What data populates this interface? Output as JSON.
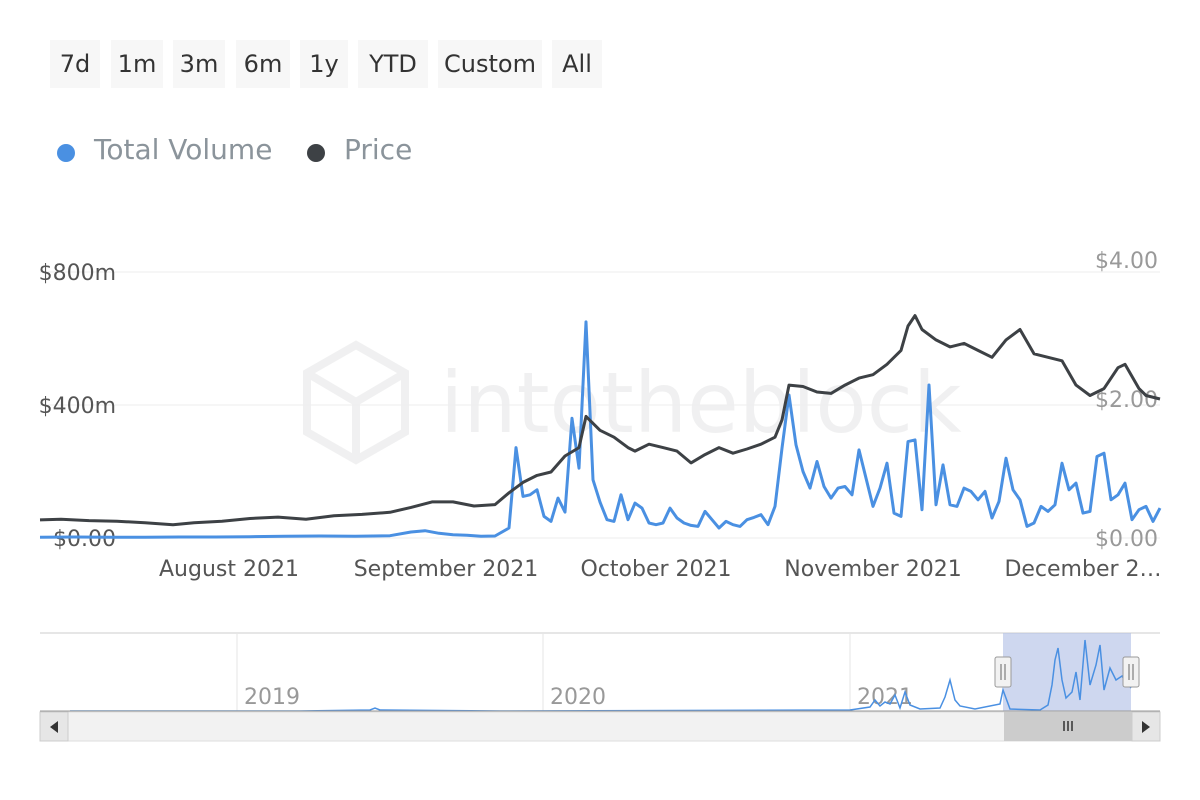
{
  "range_selector": {
    "buttons": [
      "7d",
      "1m",
      "3m",
      "6m",
      "1y",
      "YTD",
      "Custom",
      "All"
    ]
  },
  "legend": [
    {
      "label": "Total Volume",
      "color": "#4a90e2"
    },
    {
      "label": "Price",
      "color": "#3d4145"
    }
  ],
  "watermark": "intotheblock",
  "chart_data": {
    "type": "line",
    "x_ticks": [
      "August 2021",
      "September 2021",
      "October 2021",
      "November 2021",
      "December 2…"
    ],
    "y_left": {
      "ticks": [
        "$0.00",
        "$400m",
        "$800m"
      ],
      "range": [
        0,
        800
      ]
    },
    "y_right": {
      "ticks": [
        "$0.00",
        "$2.00",
        "$4.00"
      ],
      "range": [
        0,
        4
      ]
    },
    "series": [
      {
        "name": "Total Volume",
        "color": "#4a90e2",
        "axis": "left",
        "points": [
          [
            "2021-07-05",
            2
          ],
          [
            "2021-07-10",
            3
          ],
          [
            "2021-07-15",
            2
          ],
          [
            "2021-07-20",
            2
          ],
          [
            "2021-07-25",
            3
          ],
          [
            "2021-07-30",
            3
          ],
          [
            "2021-08-04",
            4
          ],
          [
            "2021-08-09",
            5
          ],
          [
            "2021-08-14",
            6
          ],
          [
            "2021-08-19",
            5
          ],
          [
            "2021-08-24",
            7
          ],
          [
            "2021-08-27",
            18
          ],
          [
            "2021-08-29",
            22
          ],
          [
            "2021-08-31",
            14
          ],
          [
            "2021-09-02",
            10
          ],
          [
            "2021-09-04",
            8
          ],
          [
            "2021-09-06",
            5
          ],
          [
            "2021-09-08",
            6
          ],
          [
            "2021-09-10",
            30
          ],
          [
            "2021-09-11",
            272
          ],
          [
            "2021-09-12",
            125
          ],
          [
            "2021-09-13",
            130
          ],
          [
            "2021-09-14",
            145
          ],
          [
            "2021-09-15",
            65
          ],
          [
            "2021-09-16",
            50
          ],
          [
            "2021-09-17",
            120
          ],
          [
            "2021-09-18",
            78
          ],
          [
            "2021-09-19",
            360
          ],
          [
            "2021-09-20",
            210
          ],
          [
            "2021-09-21",
            650
          ],
          [
            "2021-09-22",
            175
          ],
          [
            "2021-09-23",
            108
          ],
          [
            "2021-09-24",
            55
          ],
          [
            "2021-09-25",
            50
          ],
          [
            "2021-09-26",
            130
          ],
          [
            "2021-09-27",
            55
          ],
          [
            "2021-09-28",
            105
          ],
          [
            "2021-09-29",
            90
          ],
          [
            "2021-09-30",
            45
          ],
          [
            "2021-10-01",
            40
          ],
          [
            "2021-10-02",
            45
          ],
          [
            "2021-10-03",
            90
          ],
          [
            "2021-10-04",
            60
          ],
          [
            "2021-10-05",
            45
          ],
          [
            "2021-10-06",
            38
          ],
          [
            "2021-10-07",
            35
          ],
          [
            "2021-10-08",
            80
          ],
          [
            "2021-10-09",
            55
          ],
          [
            "2021-10-10",
            30
          ],
          [
            "2021-10-11",
            50
          ],
          [
            "2021-10-12",
            40
          ],
          [
            "2021-10-13",
            35
          ],
          [
            "2021-10-14",
            55
          ],
          [
            "2021-10-15",
            62
          ],
          [
            "2021-10-16",
            70
          ],
          [
            "2021-10-17",
            40
          ],
          [
            "2021-10-18",
            95
          ],
          [
            "2021-10-19",
            270
          ],
          [
            "2021-10-20",
            430
          ],
          [
            "2021-10-21",
            280
          ],
          [
            "2021-10-22",
            200
          ],
          [
            "2021-10-23",
            150
          ],
          [
            "2021-10-24",
            230
          ],
          [
            "2021-10-25",
            155
          ],
          [
            "2021-10-26",
            120
          ],
          [
            "2021-10-27",
            150
          ],
          [
            "2021-10-28",
            155
          ],
          [
            "2021-10-29",
            130
          ],
          [
            "2021-10-30",
            265
          ],
          [
            "2021-10-31",
            180
          ],
          [
            "2021-11-01",
            95
          ],
          [
            "2021-11-02",
            150
          ],
          [
            "2021-11-03",
            225
          ],
          [
            "2021-11-04",
            75
          ],
          [
            "2021-11-05",
            65
          ],
          [
            "2021-11-06",
            290
          ],
          [
            "2021-11-07",
            295
          ],
          [
            "2021-11-08",
            85
          ],
          [
            "2021-11-09",
            460
          ],
          [
            "2021-11-10",
            100
          ],
          [
            "2021-11-11",
            220
          ],
          [
            "2021-11-12",
            100
          ],
          [
            "2021-11-13",
            95
          ],
          [
            "2021-11-14",
            150
          ],
          [
            "2021-11-15",
            140
          ],
          [
            "2021-11-16",
            115
          ],
          [
            "2021-11-17",
            140
          ],
          [
            "2021-11-18",
            60
          ],
          [
            "2021-11-19",
            110
          ],
          [
            "2021-11-20",
            240
          ],
          [
            "2021-11-21",
            145
          ],
          [
            "2021-11-22",
            115
          ],
          [
            "2021-11-23",
            35
          ],
          [
            "2021-11-24",
            45
          ],
          [
            "2021-11-25",
            95
          ],
          [
            "2021-11-26",
            80
          ],
          [
            "2021-11-27",
            100
          ],
          [
            "2021-11-28",
            225
          ],
          [
            "2021-11-29",
            145
          ],
          [
            "2021-11-30",
            165
          ],
          [
            "2021-12-01",
            75
          ],
          [
            "2021-12-02",
            80
          ],
          [
            "2021-12-03",
            245
          ],
          [
            "2021-12-04",
            255
          ],
          [
            "2021-12-05",
            115
          ],
          [
            "2021-12-06",
            130
          ],
          [
            "2021-12-07",
            165
          ],
          [
            "2021-12-08",
            55
          ],
          [
            "2021-12-09",
            85
          ],
          [
            "2021-12-10",
            95
          ],
          [
            "2021-12-11",
            50
          ],
          [
            "2021-12-12",
            90
          ]
        ]
      },
      {
        "name": "Price",
        "color": "#3d4145",
        "axis": "right",
        "points": [
          [
            "2021-07-05",
            0.26
          ],
          [
            "2021-07-08",
            0.27
          ],
          [
            "2021-07-12",
            0.25
          ],
          [
            "2021-07-16",
            0.24
          ],
          [
            "2021-07-20",
            0.22
          ],
          [
            "2021-07-24",
            0.19
          ],
          [
            "2021-07-27",
            0.22
          ],
          [
            "2021-07-31",
            0.24
          ],
          [
            "2021-08-04",
            0.28
          ],
          [
            "2021-08-08",
            0.3
          ],
          [
            "2021-08-12",
            0.27
          ],
          [
            "2021-08-16",
            0.32
          ],
          [
            "2021-08-20",
            0.34
          ],
          [
            "2021-08-24",
            0.37
          ],
          [
            "2021-08-27",
            0.44
          ],
          [
            "2021-08-30",
            0.52
          ],
          [
            "2021-09-02",
            0.52
          ],
          [
            "2021-09-05",
            0.46
          ],
          [
            "2021-09-08",
            0.48
          ],
          [
            "2021-09-10",
            0.65
          ],
          [
            "2021-09-12",
            0.8
          ],
          [
            "2021-09-14",
            0.9
          ],
          [
            "2021-09-16",
            0.95
          ],
          [
            "2021-09-18",
            1.18
          ],
          [
            "2021-09-20",
            1.3
          ],
          [
            "2021-09-21",
            1.75
          ],
          [
            "2021-09-23",
            1.55
          ],
          [
            "2021-09-25",
            1.45
          ],
          [
            "2021-09-27",
            1.3
          ],
          [
            "2021-09-28",
            1.25
          ],
          [
            "2021-09-30",
            1.35
          ],
          [
            "2021-10-02",
            1.3
          ],
          [
            "2021-10-04",
            1.25
          ],
          [
            "2021-10-06",
            1.08
          ],
          [
            "2021-10-08",
            1.2
          ],
          [
            "2021-10-10",
            1.3
          ],
          [
            "2021-10-12",
            1.22
          ],
          [
            "2021-10-14",
            1.28
          ],
          [
            "2021-10-16",
            1.35
          ],
          [
            "2021-10-18",
            1.45
          ],
          [
            "2021-10-19",
            1.7
          ],
          [
            "2021-10-20",
            2.2
          ],
          [
            "2021-10-22",
            2.18
          ],
          [
            "2021-10-24",
            2.1
          ],
          [
            "2021-10-26",
            2.08
          ],
          [
            "2021-10-28",
            2.2
          ],
          [
            "2021-10-30",
            2.3
          ],
          [
            "2021-11-01",
            2.35
          ],
          [
            "2021-11-03",
            2.5
          ],
          [
            "2021-11-05",
            2.7
          ],
          [
            "2021-11-06",
            3.05
          ],
          [
            "2021-11-07",
            3.2
          ],
          [
            "2021-11-08",
            3.0
          ],
          [
            "2021-11-10",
            2.85
          ],
          [
            "2021-11-12",
            2.75
          ],
          [
            "2021-11-14",
            2.8
          ],
          [
            "2021-11-16",
            2.7
          ],
          [
            "2021-11-18",
            2.6
          ],
          [
            "2021-11-20",
            2.85
          ],
          [
            "2021-11-22",
            3.0
          ],
          [
            "2021-11-24",
            2.65
          ],
          [
            "2021-11-26",
            2.6
          ],
          [
            "2021-11-28",
            2.55
          ],
          [
            "2021-11-30",
            2.2
          ],
          [
            "2021-12-02",
            2.05
          ],
          [
            "2021-12-04",
            2.15
          ],
          [
            "2021-12-06",
            2.45
          ],
          [
            "2021-12-07",
            2.5
          ],
          [
            "2021-12-09",
            2.15
          ],
          [
            "2021-12-10",
            2.05
          ],
          [
            "2021-12-12",
            2.0
          ]
        ]
      }
    ],
    "navigator": {
      "labels": [
        "2019",
        "2020",
        "2021"
      ]
    }
  }
}
